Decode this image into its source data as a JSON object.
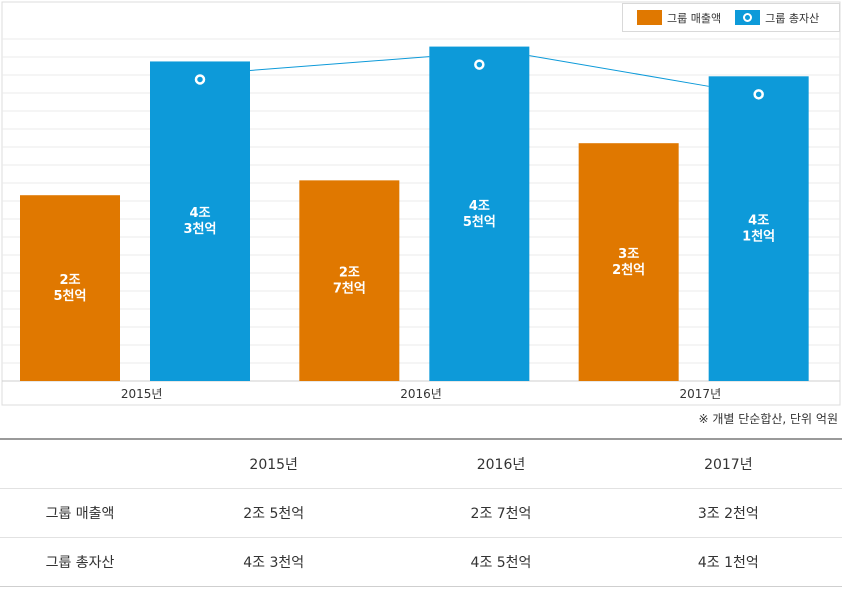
{
  "chart_data": {
    "type": "bar",
    "categories": [
      "2015년",
      "2016년",
      "2017년"
    ],
    "series": [
      {
        "name": "그룹 매출액",
        "values": [
          2.5,
          2.7,
          3.2
        ],
        "labels": [
          "2조\n5천억",
          "2조\n7천억",
          "3조\n2천억"
        ],
        "color": "#e07800"
      },
      {
        "name": "그룹 총자산",
        "values": [
          4.3,
          4.5,
          4.1
        ],
        "labels": [
          "4조\n3천억",
          "4조\n5천억",
          "4조\n1천억"
        ],
        "color": "#0d9ad9"
      }
    ],
    "line_series": "그룹 총자산",
    "unit": "조",
    "ylim": [
      0,
      5.1
    ],
    "grid": true,
    "legend": "top-right"
  },
  "note": "※ 개별 단순합산, 단위 억원",
  "table": {
    "headers": [
      "",
      "2015년",
      "2016년",
      "2017년"
    ],
    "rows": [
      {
        "label": "그룹 매출액",
        "cells": [
          "2조 5천억",
          "2조 7천억",
          "3조 2천억"
        ]
      },
      {
        "label": "그룹 총자산",
        "cells": [
          "4조 3천억",
          "4조 5천억",
          "4조 1천억"
        ]
      }
    ]
  },
  "colors": {
    "sales": "#e07800",
    "assets": "#0d9ad9",
    "grid": "#ebebeb"
  }
}
